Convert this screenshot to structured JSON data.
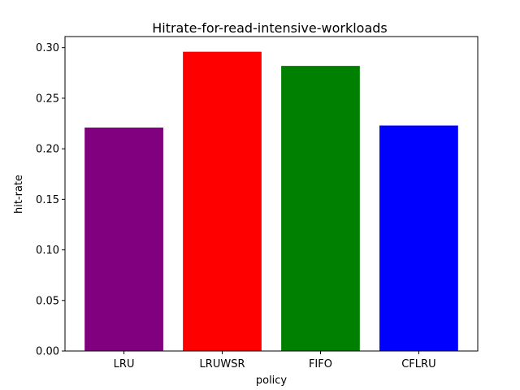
{
  "chart_data": {
    "type": "bar",
    "title": "Hitrate-for-read-intensive-workloads",
    "xlabel": "policy",
    "ylabel": "hit-rate",
    "categories": [
      "LRU",
      "LRUWSR",
      "FIFO",
      "CFLRU"
    ],
    "values": [
      0.221,
      0.296,
      0.282,
      0.223
    ],
    "colors": [
      "#800080",
      "#ff0000",
      "#008000",
      "#0000ff"
    ],
    "ylim": [
      0,
      0.311
    ],
    "yticks": [
      0.0,
      0.05,
      0.1,
      0.15,
      0.2,
      0.25,
      0.3
    ],
    "ytick_labels": [
      "0.00",
      "0.05",
      "0.10",
      "0.15",
      "0.20",
      "0.25",
      "0.30"
    ],
    "grid": false,
    "legend": "none"
  }
}
